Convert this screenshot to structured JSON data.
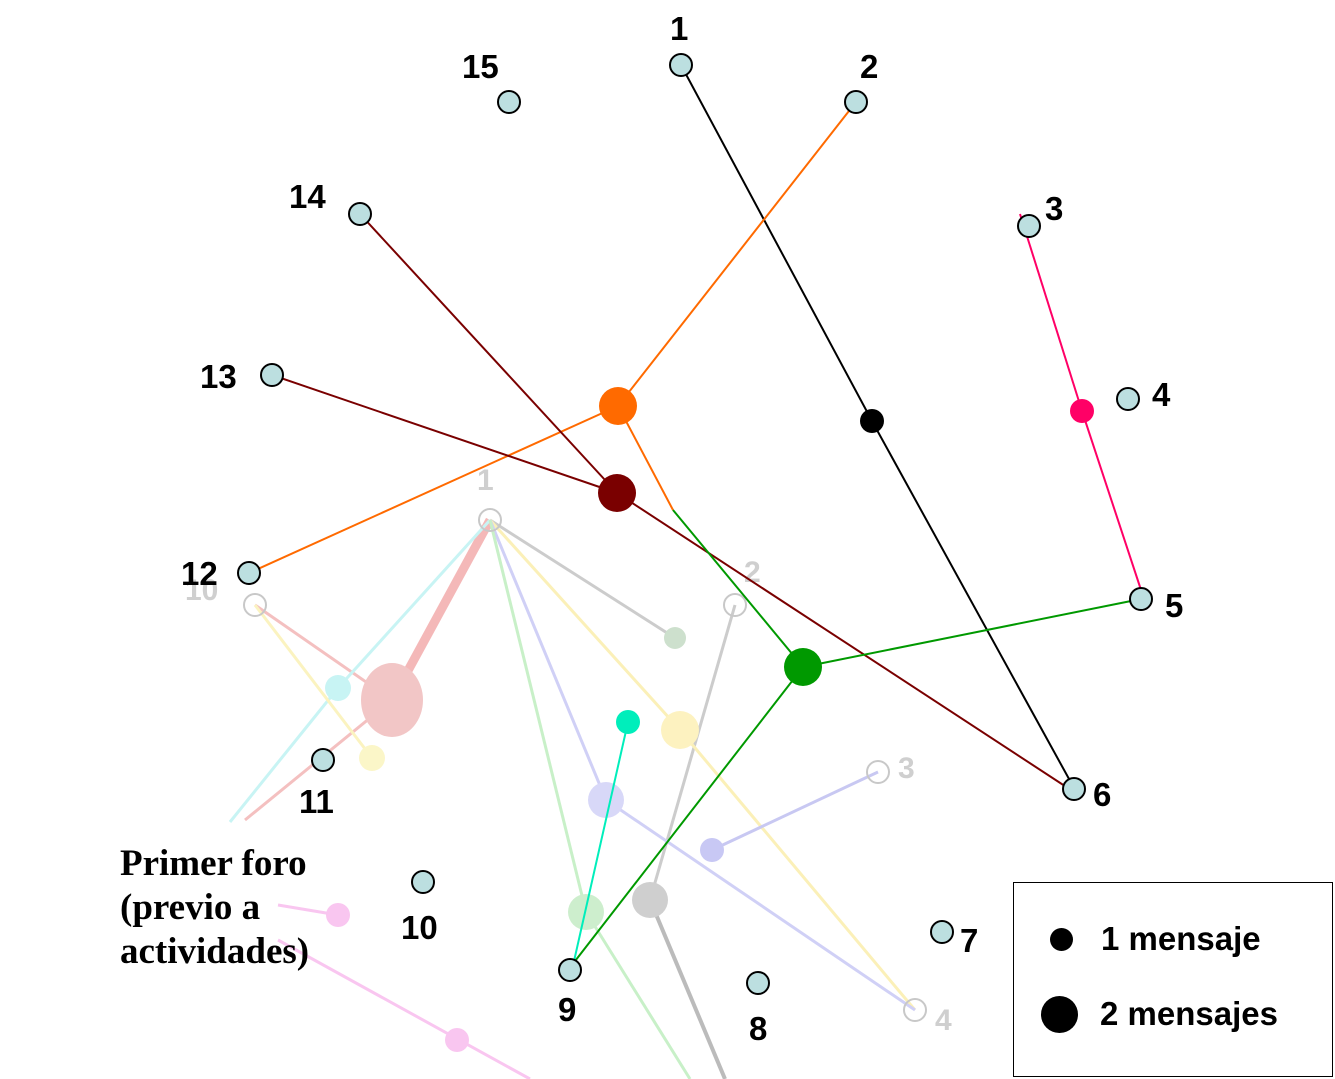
{
  "participants": [
    {
      "label": "1"
    },
    {
      "label": "2"
    },
    {
      "label": "3"
    },
    {
      "label": "4"
    },
    {
      "label": "5"
    },
    {
      "label": "6"
    },
    {
      "label": "7"
    },
    {
      "label": "8"
    },
    {
      "label": "9"
    },
    {
      "label": "10"
    },
    {
      "label": "11"
    },
    {
      "label": "12"
    },
    {
      "label": "13"
    },
    {
      "label": "14"
    },
    {
      "label": "15"
    }
  ],
  "threads": [
    {
      "color": "#000000",
      "messages": 1,
      "members": [
        "1",
        "6"
      ]
    },
    {
      "color": "#ff6a00",
      "messages": 2,
      "members": [
        "2",
        "12"
      ]
    },
    {
      "color": "#7a0000",
      "messages": 2,
      "members": [
        "14",
        "13",
        "6"
      ]
    },
    {
      "color": "#009900",
      "messages": 2,
      "members": [
        "5",
        "9"
      ]
    },
    {
      "color": "#ff0066",
      "messages": 1,
      "members": [
        "3",
        "5"
      ]
    },
    {
      "color": "#00eebb",
      "messages": 1,
      "members": [
        "9"
      ]
    }
  ],
  "background_forum": {
    "caption": "Primer foro\n(previo a actividades)",
    "node_labels": [
      "1",
      "2",
      "3",
      "4",
      "10"
    ]
  },
  "legend": {
    "items": [
      {
        "label": "1 mensaje",
        "messages": 1
      },
      {
        "label": "2 mensajes",
        "messages": 2
      }
    ]
  },
  "colors": {
    "node_fill": "#bcdfe0",
    "node_stroke": "#000000"
  }
}
